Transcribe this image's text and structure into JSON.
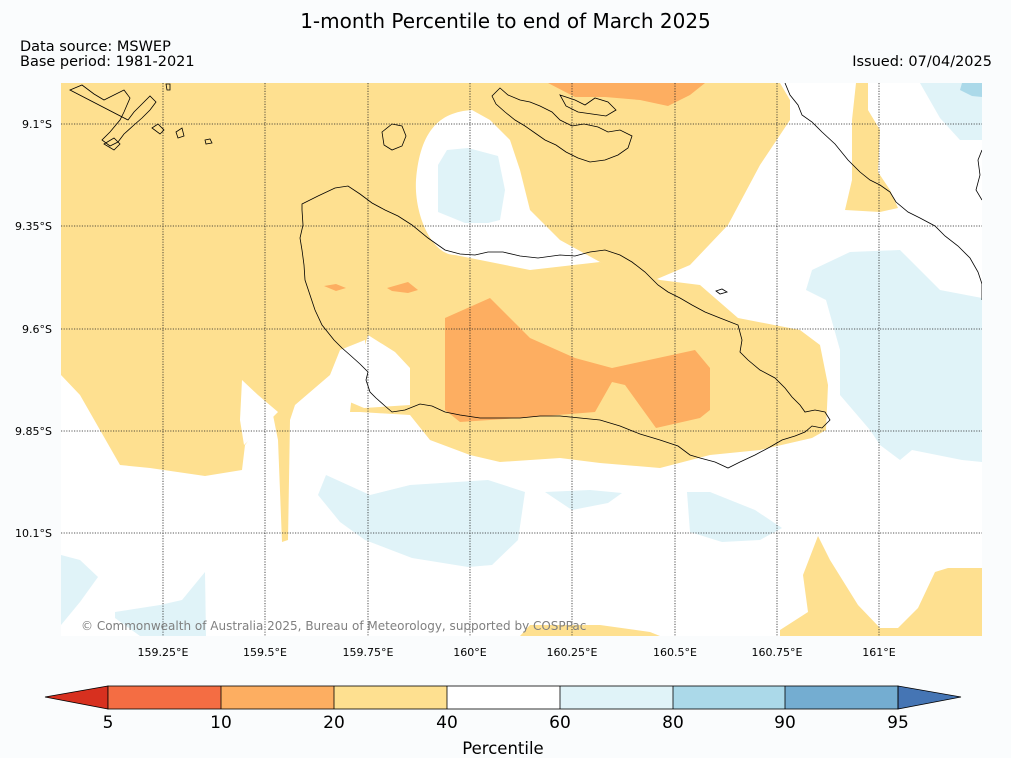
{
  "title": "1-month Percentile to end of March 2025",
  "data_source": "Data source: MSWEP",
  "base_period": "Base period: 1981-2021",
  "issued": "Issued: 07/04/2025",
  "copyright": "© Commonwealth of Australia 2025, Bureau of Meteorology, supported by COSPPac",
  "lat_labels": [
    "9.1°S",
    "9.35°S",
    "9.6°S",
    "9.85°S",
    "10.1°S"
  ],
  "lon_labels": [
    "159.25°E",
    "159.5°E",
    "159.75°E",
    "160°E",
    "160.25°E",
    "160.5°E",
    "160.75°E",
    "161°E"
  ],
  "colorbar": {
    "label": "Percentile",
    "ticks": [
      "5",
      "10",
      "20",
      "40",
      "60",
      "80",
      "90",
      "95"
    ],
    "colors": {
      "lt5": "#d7301f",
      "p5_10": "#f46d43",
      "p10_20": "#fdae61",
      "p20_40": "#fee090",
      "p40_60": "#ffffff",
      "p60_80": "#e0f3f8",
      "p80_90": "#abd9e9",
      "p90_95": "#74add1",
      "gt95": "#4575b4"
    }
  }
}
